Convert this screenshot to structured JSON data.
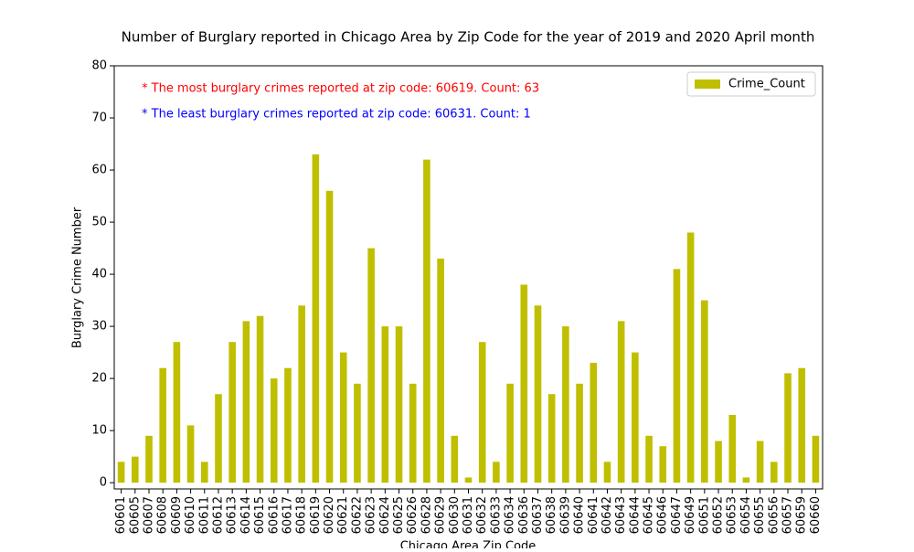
{
  "chart_data": {
    "type": "bar",
    "title": "Number of Burglary reported in Chicago Area by Zip Code for the year of 2019 and 2020 April month",
    "x_label": "Chicago Area Zip Code",
    "y_label": "Burglary Crime Number",
    "annotations": [
      {
        "text": "* The most burglary crimes reported at zip code: 60619. Count: 63",
        "color": "red"
      },
      {
        "text": "* The least burglary crimes reported at zip code: 60631. Count: 1",
        "color": "blue"
      }
    ],
    "categories": [
      "60601",
      "60605",
      "60607",
      "60608",
      "60609",
      "60610",
      "60611",
      "60612",
      "60613",
      "60614",
      "60615",
      "60616",
      "60617",
      "60618",
      "60619",
      "60620",
      "60621",
      "60622",
      "60623",
      "60624",
      "60625",
      "60626",
      "60628",
      "60629",
      "60630",
      "60631",
      "60632",
      "60633",
      "60634",
      "60636",
      "60637",
      "60638",
      "60639",
      "60640",
      "60641",
      "60642",
      "60643",
      "60644",
      "60645",
      "60646",
      "60647",
      "60649",
      "60651",
      "60652",
      "60653",
      "60654",
      "60655",
      "60656",
      "60657",
      "60659",
      "60660"
    ],
    "series": [
      {
        "name": "Crime_Count",
        "color": "#bfbf00",
        "values": [
          4,
          5,
          9,
          22,
          27,
          11,
          4,
          17,
          27,
          31,
          32,
          20,
          22,
          34,
          63,
          56,
          25,
          19,
          45,
          30,
          30,
          19,
          62,
          43,
          9,
          1,
          27,
          4,
          19,
          38,
          34,
          17,
          30,
          19,
          23,
          4,
          31,
          25,
          9,
          7,
          41,
          48,
          35,
          8,
          13,
          1,
          8,
          4,
          21,
          22,
          9
        ]
      }
    ],
    "ylim": [
      -1.2,
      80
    ],
    "yticks": [
      0,
      10,
      20,
      30,
      40,
      50,
      60,
      70,
      80
    ],
    "legend": "upper right"
  }
}
